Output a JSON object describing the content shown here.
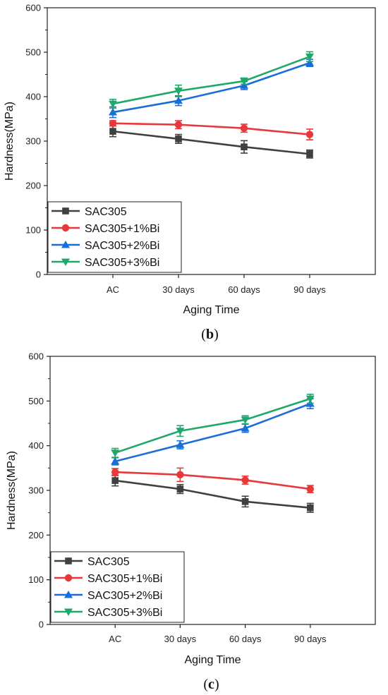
{
  "chart_data": [
    {
      "type": "line",
      "panel_label": "b",
      "categories": [
        "AC",
        "30 days",
        "60 days",
        "90 days"
      ],
      "xlabel": "Aging Time",
      "ylabel": "Hardness(MPa)",
      "ylim": [
        0,
        600
      ],
      "yticks": [
        "0",
        "100",
        "200",
        "300",
        "400",
        "500",
        "600"
      ],
      "legend_position": "bottom-left",
      "series": [
        {
          "name": "SAC305",
          "values": [
            322,
            305,
            287,
            271
          ],
          "errors": [
            12,
            10,
            14,
            9
          ],
          "color": "#404040",
          "marker": "square"
        },
        {
          "name": "SAC305+1%Bi",
          "values": [
            340,
            337,
            329,
            315
          ],
          "errors": [
            6,
            9,
            9,
            12
          ],
          "color": "#e8383a",
          "marker": "circle"
        },
        {
          "name": "SAC305+2%Bi",
          "values": [
            365,
            391,
            425,
            476
          ],
          "errors": [
            12,
            11,
            9,
            8
          ],
          "color": "#1a6ed8",
          "marker": "triangle-up"
        },
        {
          "name": "SAC305+3%Bi",
          "values": [
            384,
            413,
            435,
            490
          ],
          "errors": [
            10,
            13,
            7,
            11
          ],
          "color": "#1fa86a",
          "marker": "triangle-down"
        }
      ]
    },
    {
      "type": "line",
      "panel_label": "c",
      "categories": [
        "AC",
        "30 days",
        "60 days",
        "90 days"
      ],
      "xlabel": "Aging Time",
      "ylabel": "Hardness(MPa)",
      "ylim": [
        0,
        600
      ],
      "yticks": [
        "0",
        "100",
        "200",
        "300",
        "400",
        "500",
        "600"
      ],
      "legend_position": "bottom-left",
      "series": [
        {
          "name": "SAC305",
          "values": [
            322,
            303,
            275,
            261
          ],
          "errors": [
            12,
            10,
            12,
            10
          ],
          "color": "#404040",
          "marker": "square"
        },
        {
          "name": "SAC305+1%Bi",
          "values": [
            341,
            335,
            323,
            303
          ],
          "errors": [
            8,
            15,
            9,
            8
          ],
          "color": "#e8383a",
          "marker": "circle"
        },
        {
          "name": "SAC305+2%Bi",
          "values": [
            365,
            402,
            439,
            494
          ],
          "errors": [
            8,
            9,
            9,
            11
          ],
          "color": "#1a6ed8",
          "marker": "triangle-up"
        },
        {
          "name": "SAC305+3%Bi",
          "values": [
            384,
            433,
            458,
            505
          ],
          "errors": [
            10,
            12,
            9,
            10
          ],
          "color": "#1fa86a",
          "marker": "triangle-down"
        }
      ]
    }
  ]
}
